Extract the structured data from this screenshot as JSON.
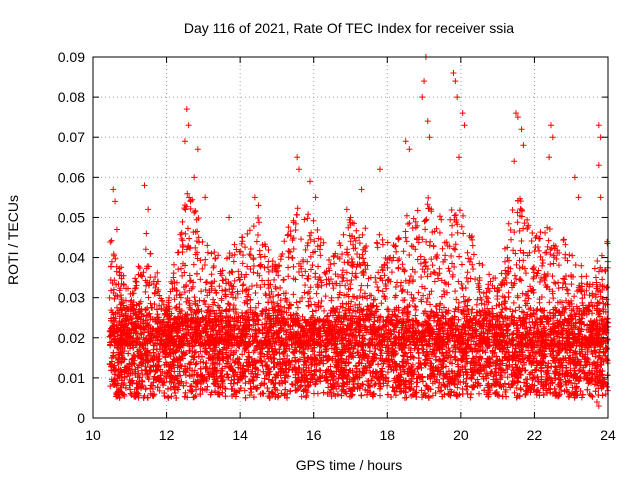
{
  "chart_data": {
    "type": "scatter",
    "title": "Day 116 of 2021, Rate Of TEC Index for receiver ssia",
    "xlabel": "GPS time / hours",
    "ylabel": "ROTI / TECUs",
    "xlim": [
      10,
      24
    ],
    "ylim": [
      0,
      0.09
    ],
    "x_ticks": [
      10,
      12,
      14,
      16,
      18,
      20,
      22,
      24
    ],
    "y_ticks": [
      0,
      0.01,
      0.02,
      0.03,
      0.04,
      0.05,
      0.06,
      0.07,
      0.08,
      0.09
    ],
    "x_tick_labels": [
      "10",
      "12",
      "14",
      "16",
      "18",
      "20",
      "22",
      "24"
    ],
    "y_tick_labels": [
      "0",
      "0.01",
      "0.02",
      "0.03",
      "0.04",
      "0.05",
      "0.06",
      "0.07",
      "0.08",
      "0.09"
    ],
    "grid": true,
    "marker": "+",
    "marker_color": "#ff0000",
    "series": [
      {
        "name": "ROTI",
        "x_range": [
          10.45,
          24.0
        ],
        "bulk_range": [
          0.005,
          0.025
        ],
        "notable_points": [
          {
            "x": 10.55,
            "y": 0.057
          },
          {
            "x": 10.6,
            "y": 0.054
          },
          {
            "x": 10.65,
            "y": 0.047
          },
          {
            "x": 11.4,
            "y": 0.058
          },
          {
            "x": 11.5,
            "y": 0.052
          },
          {
            "x": 11.45,
            "y": 0.046
          },
          {
            "x": 12.55,
            "y": 0.077
          },
          {
            "x": 12.6,
            "y": 0.073
          },
          {
            "x": 12.5,
            "y": 0.069
          },
          {
            "x": 12.85,
            "y": 0.067
          },
          {
            "x": 12.75,
            "y": 0.06
          },
          {
            "x": 12.65,
            "y": 0.054
          },
          {
            "x": 13.05,
            "y": 0.055
          },
          {
            "x": 13.7,
            "y": 0.05
          },
          {
            "x": 14.4,
            "y": 0.055
          },
          {
            "x": 14.5,
            "y": 0.053
          },
          {
            "x": 15.55,
            "y": 0.065
          },
          {
            "x": 15.6,
            "y": 0.062
          },
          {
            "x": 15.9,
            "y": 0.059
          },
          {
            "x": 16.05,
            "y": 0.055
          },
          {
            "x": 16.9,
            "y": 0.052
          },
          {
            "x": 17.0,
            "y": 0.05
          },
          {
            "x": 17.3,
            "y": 0.057
          },
          {
            "x": 17.8,
            "y": 0.062
          },
          {
            "x": 18.5,
            "y": 0.069
          },
          {
            "x": 18.6,
            "y": 0.067
          },
          {
            "x": 18.95,
            "y": 0.08
          },
          {
            "x": 19.0,
            "y": 0.084
          },
          {
            "x": 19.05,
            "y": 0.09
          },
          {
            "x": 19.1,
            "y": 0.074
          },
          {
            "x": 19.15,
            "y": 0.07
          },
          {
            "x": 19.8,
            "y": 0.086
          },
          {
            "x": 19.85,
            "y": 0.084
          },
          {
            "x": 19.9,
            "y": 0.08
          },
          {
            "x": 20.05,
            "y": 0.076
          },
          {
            "x": 20.1,
            "y": 0.073
          },
          {
            "x": 19.95,
            "y": 0.065
          },
          {
            "x": 21.5,
            "y": 0.076
          },
          {
            "x": 21.55,
            "y": 0.075
          },
          {
            "x": 21.65,
            "y": 0.072
          },
          {
            "x": 21.7,
            "y": 0.068
          },
          {
            "x": 21.45,
            "y": 0.064
          },
          {
            "x": 22.45,
            "y": 0.073
          },
          {
            "x": 22.5,
            "y": 0.07
          },
          {
            "x": 22.4,
            "y": 0.065
          },
          {
            "x": 23.1,
            "y": 0.06
          },
          {
            "x": 23.2,
            "y": 0.055
          },
          {
            "x": 23.75,
            "y": 0.073
          },
          {
            "x": 23.8,
            "y": 0.07
          },
          {
            "x": 23.75,
            "y": 0.063
          },
          {
            "x": 23.8,
            "y": 0.055
          },
          {
            "x": 23.7,
            "y": 0.004
          },
          {
            "x": 23.75,
            "y": 0.003
          },
          {
            "x": 12.05,
            "y": 0.005
          }
        ],
        "envelope": [
          [
            10.5,
            0.045
          ],
          [
            11.0,
            0.032
          ],
          [
            11.5,
            0.045
          ],
          [
            12.0,
            0.028
          ],
          [
            12.6,
            0.06
          ],
          [
            13.0,
            0.045
          ],
          [
            13.5,
            0.04
          ],
          [
            14.0,
            0.045
          ],
          [
            14.5,
            0.05
          ],
          [
            15.0,
            0.038
          ],
          [
            15.5,
            0.055
          ],
          [
            16.0,
            0.05
          ],
          [
            16.5,
            0.04
          ],
          [
            17.0,
            0.05
          ],
          [
            17.5,
            0.048
          ],
          [
            18.0,
            0.045
          ],
          [
            18.5,
            0.05
          ],
          [
            19.0,
            0.058
          ],
          [
            19.5,
            0.05
          ],
          [
            20.0,
            0.055
          ],
          [
            20.5,
            0.04
          ],
          [
            21.0,
            0.035
          ],
          [
            21.5,
            0.058
          ],
          [
            22.0,
            0.045
          ],
          [
            22.5,
            0.05
          ],
          [
            23.0,
            0.042
          ],
          [
            23.5,
            0.035
          ],
          [
            24.0,
            0.045
          ]
        ]
      }
    ]
  }
}
